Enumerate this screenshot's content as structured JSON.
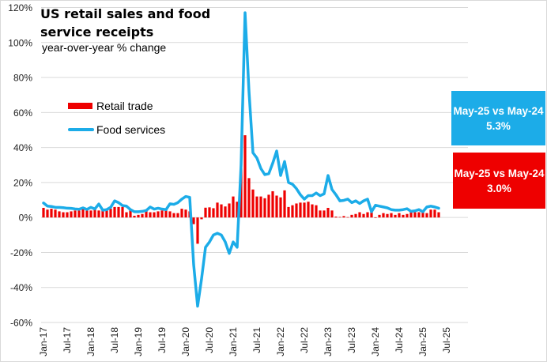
{
  "chart_data": {
    "type": "bar+line",
    "title": "US retail sales and food service receipts",
    "subtitle": "year-over-year % change",
    "xlabel": "",
    "ylabel": "",
    "ylim": [
      -60,
      120
    ],
    "yticks": [
      -60,
      -40,
      -20,
      0,
      20,
      40,
      60,
      80,
      100,
      120
    ],
    "ytick_labels": [
      "-60%",
      "-40%",
      "-20%",
      "0%",
      "20%",
      "40%",
      "60%",
      "80%",
      "100%",
      "120%"
    ],
    "xtick_labels": [
      "Jan-17",
      "Jul-17",
      "Jan-18",
      "Jul-18",
      "Jan-19",
      "Jul-19",
      "Jan-20",
      "Jul-20",
      "Jan-21",
      "Jul-21",
      "Jan-22",
      "Jul-22",
      "Jan-23",
      "Jul-23",
      "Jan-24",
      "Jul-24",
      "Jan-25",
      "Jul-25"
    ],
    "x_start": "Jan-17",
    "x_end": "May-25",
    "grid": "horizontal",
    "legend_placement": "upper-left",
    "series": [
      {
        "name": "Retail trade",
        "type": "bar",
        "color": "#ee0000",
        "values": [
          5.5,
          4.5,
          5,
          4.5,
          3.5,
          3,
          3,
          3.5,
          4,
          4,
          5,
          4,
          4,
          5,
          4,
          5,
          4.5,
          5,
          6,
          6,
          6,
          3,
          4.5,
          1,
          1.5,
          2,
          4,
          3,
          3,
          3.5,
          4,
          4,
          3.5,
          2.5,
          2.5,
          5,
          4.5,
          3.5,
          -3.8,
          -15,
          -1,
          5.6,
          5.8,
          5.3,
          8.5,
          7.5,
          6.3,
          8,
          12,
          9,
          28,
          47,
          22.5,
          16,
          12,
          12,
          11,
          13,
          15,
          12.5,
          11.5,
          15.5,
          6,
          7,
          8,
          8.5,
          8.5,
          9,
          7.5,
          7,
          4,
          4,
          5.5,
          4,
          0.5,
          0.3,
          0.8,
          0.2,
          1.5,
          2,
          3,
          2,
          3,
          4.5,
          -0.3,
          1.5,
          2.5,
          2,
          2.5,
          1.5,
          2.5,
          1.5,
          2,
          3,
          3,
          3,
          3.5,
          2.5,
          4.5,
          4.5,
          3.0
        ]
      },
      {
        "name": "Food services",
        "type": "line",
        "color": "#1cace8",
        "values": [
          8.3,
          6.5,
          6.3,
          5.8,
          5.8,
          5.6,
          5.3,
          5.2,
          4.9,
          4.7,
          5.5,
          4.6,
          5.8,
          4.9,
          7.7,
          4.2,
          4.5,
          5.8,
          9.5,
          8.5,
          6.8,
          6.5,
          4.5,
          3.3,
          3.3,
          3.5,
          4,
          6,
          4.8,
          5.3,
          4.8,
          4.5,
          7.8,
          7.5,
          8.5,
          10.5,
          12,
          11.5,
          -27,
          -50.7,
          -35,
          -17,
          -14,
          -10,
          -9,
          -10,
          -14,
          -20.5,
          -14,
          -17,
          30,
          117,
          72,
          37,
          34,
          28,
          24.5,
          25,
          31,
          38,
          24,
          32,
          20,
          19,
          16.5,
          13,
          10.5,
          12.5,
          12.5,
          14,
          12.5,
          13.5,
          24,
          16,
          13,
          9.5,
          9.8,
          10.5,
          8.5,
          9.5,
          8,
          9.5,
          10.5,
          3.3,
          7,
          6.5,
          6,
          5.5,
          4.5,
          4.2,
          4.2,
          4.5,
          5,
          3.5,
          3.8,
          4.5,
          3.3,
          6,
          6.5,
          6,
          5.3
        ]
      }
    ],
    "annotations": [
      {
        "line1": "May-25 vs May-24",
        "line2": "5.3%",
        "color": "#1cace8"
      },
      {
        "line1": "May-25 vs May-24",
        "line2": "3.0%",
        "color": "#ee0000"
      }
    ]
  }
}
